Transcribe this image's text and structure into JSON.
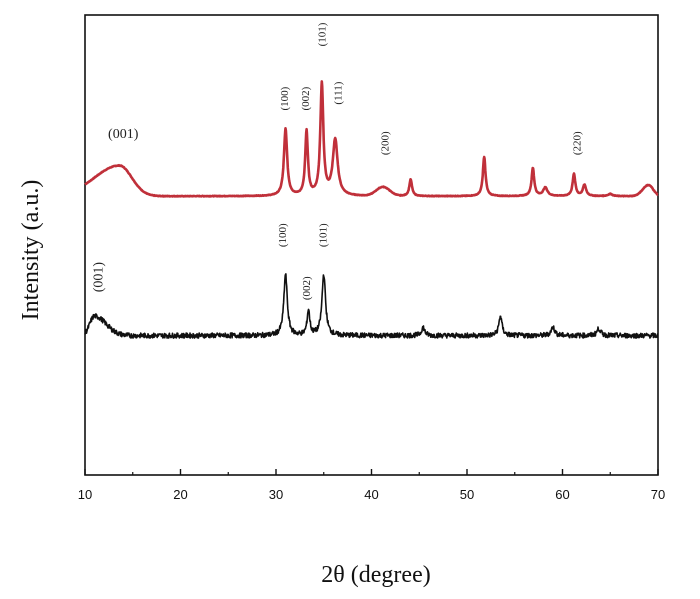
{
  "chart_data": {
    "type": "line",
    "title": "",
    "xlabel": "2θ (degree)",
    "ylabel": "Intensity (a.u.)",
    "xlim": [
      10,
      70
    ],
    "xticks": [
      10,
      20,
      30,
      40,
      50,
      60,
      70
    ],
    "y_ticks_shown": false,
    "grid": false,
    "legend": "none",
    "series": [
      {
        "color": "#c0303a",
        "baseline": 5.0,
        "noise": 0.01,
        "broad_peaks": [
          {
            "center": 13.6,
            "height": 1.1,
            "rise_width": 2.6,
            "fall_width": 1.3
          },
          {
            "center": 41.2,
            "height": 0.32,
            "rise_width": 0.7,
            "fall_width": 0.7
          },
          {
            "center": 69.0,
            "height": 0.4,
            "rise_width": 0.6,
            "fall_width": 0.5
          }
        ],
        "peaks": [
          {
            "x": 31.0,
            "h": 2.4,
            "w": 0.3
          },
          {
            "x": 33.2,
            "h": 2.3,
            "w": 0.25
          },
          {
            "x": 34.8,
            "h": 4.0,
            "w": 0.28
          },
          {
            "x": 36.2,
            "h": 2.0,
            "w": 0.45
          },
          {
            "x": 44.1,
            "h": 0.6,
            "w": 0.25
          },
          {
            "x": 51.8,
            "h": 1.4,
            "w": 0.25
          },
          {
            "x": 56.9,
            "h": 1.0,
            "w": 0.25
          },
          {
            "x": 58.2,
            "h": 0.3,
            "w": 0.4
          },
          {
            "x": 61.2,
            "h": 0.8,
            "w": 0.25
          },
          {
            "x": 62.3,
            "h": 0.4,
            "w": 0.3
          },
          {
            "x": 65.0,
            "h": 0.08,
            "w": 0.4
          }
        ]
      },
      {
        "color": "#111111",
        "baseline": 0.0,
        "noise": 0.09,
        "broad_peaks": [
          {
            "center": 11.0,
            "height": 0.7,
            "rise_width": 0.5,
            "fall_width": 1.2
          }
        ],
        "peaks": [
          {
            "x": 31.0,
            "h": 2.2,
            "w": 0.32
          },
          {
            "x": 33.4,
            "h": 0.9,
            "w": 0.25
          },
          {
            "x": 35.0,
            "h": 2.2,
            "w": 0.33
          },
          {
            "x": 45.4,
            "h": 0.3,
            "w": 0.3
          },
          {
            "x": 53.5,
            "h": 0.7,
            "w": 0.3
          },
          {
            "x": 59.0,
            "h": 0.3,
            "w": 0.35
          },
          {
            "x": 63.8,
            "h": 0.25,
            "w": 0.35
          }
        ]
      }
    ],
    "annotations": [
      {
        "text": "(001)",
        "x": 14.0,
        "y": 7.2,
        "rotate": 0,
        "size": 14
      },
      {
        "text": "(100)",
        "x": 31.0,
        "y": 8.5,
        "rotate": -90,
        "size": 11
      },
      {
        "text": "(002)",
        "x": 33.2,
        "y": 8.5,
        "rotate": -90,
        "size": 11
      },
      {
        "text": "(101)",
        "x": 34.9,
        "y": 10.8,
        "rotate": -90,
        "size": 11
      },
      {
        "text": "(111)",
        "x": 36.6,
        "y": 8.7,
        "rotate": -90,
        "size": 11
      },
      {
        "text": "(200)",
        "x": 41.5,
        "y": 6.9,
        "rotate": -90,
        "size": 11
      },
      {
        "text": "(220)",
        "x": 61.6,
        "y": 6.9,
        "rotate": -90,
        "size": 11
      },
      {
        "text": "(001)",
        "x": 11.5,
        "y": 2.1,
        "rotate": -90,
        "size": 14
      },
      {
        "text": "(100)",
        "x": 30.8,
        "y": 3.6,
        "rotate": -90,
        "size": 11
      },
      {
        "text": "(002)",
        "x": 33.3,
        "y": 1.7,
        "rotate": -90,
        "size": 11
      },
      {
        "text": "(101)",
        "x": 35.0,
        "y": 3.6,
        "rotate": -90,
        "size": 11
      }
    ]
  }
}
